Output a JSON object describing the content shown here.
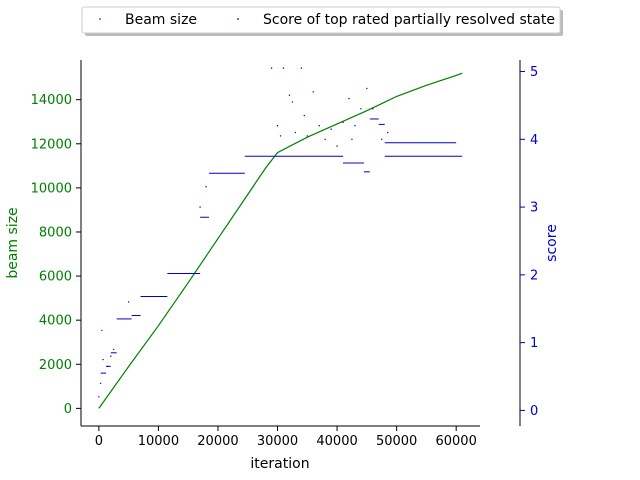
{
  "chart_data": {
    "type": "scatter",
    "xlabel": "iteration",
    "ylabel_left": "beam size",
    "ylabel_right": "score",
    "xlim": [
      -3000,
      64000
    ],
    "ylim_left": [
      -800,
      15800
    ],
    "ylim_right": [
      -0.23,
      5.17
    ],
    "x_ticks": [
      0,
      10000,
      20000,
      30000,
      40000,
      50000,
      60000
    ],
    "y_left_ticks": [
      0,
      2000,
      4000,
      6000,
      8000,
      10000,
      12000,
      14000
    ],
    "y_right_ticks": [
      0,
      1,
      2,
      3,
      4,
      5
    ],
    "legend_position": "top",
    "colors": {
      "beam": "#008000",
      "score": "#0000cc"
    },
    "series": [
      {
        "name": "Beam size",
        "axis": "left",
        "x": [
          0,
          5000,
          10000,
          15000,
          20000,
          25000,
          28000,
          30000,
          35000,
          40000,
          45000,
          50000,
          55000,
          60000,
          61000
        ],
        "values": [
          0,
          1900,
          3750,
          5700,
          7700,
          9700,
          10900,
          11600,
          12300,
          12900,
          13500,
          14150,
          14650,
          15100,
          15200
        ]
      },
      {
        "name": "Score of top rated partially resolved state",
        "axis": "right",
        "segments": [
          {
            "x0": 300,
            "x1": 1200,
            "value": 0.55
          },
          {
            "x0": 1200,
            "x1": 2000,
            "value": 0.65
          },
          {
            "x0": 2000,
            "x1": 3000,
            "value": 0.85
          },
          {
            "x0": 3000,
            "x1": 5500,
            "value": 1.35
          },
          {
            "x0": 5500,
            "x1": 7000,
            "value": 1.4
          },
          {
            "x0": 7000,
            "x1": 11500,
            "value": 1.68
          },
          {
            "x0": 11500,
            "x1": 17000,
            "value": 2.02
          },
          {
            "x0": 17000,
            "x1": 18500,
            "value": 2.85
          },
          {
            "x0": 18500,
            "x1": 24500,
            "value": 3.5
          },
          {
            "x0": 24500,
            "x1": 41000,
            "value": 3.75
          },
          {
            "x0": 41000,
            "x1": 44500,
            "value": 3.65
          },
          {
            "x0": 44500,
            "x1": 45500,
            "value": 3.52
          },
          {
            "x0": 45500,
            "x1": 47000,
            "value": 4.3
          },
          {
            "x0": 47000,
            "x1": 48000,
            "value": 4.22
          },
          {
            "x0": 48000,
            "x1": 60000,
            "value": 3.95
          },
          {
            "x0": 48000,
            "x1": 61000,
            "value": 3.75
          }
        ],
        "scatter": [
          [
            0,
            0.2
          ],
          [
            300,
            0.4
          ],
          [
            500,
            1.18
          ],
          [
            700,
            0.75
          ],
          [
            1500,
            0.65
          ],
          [
            2000,
            0.8
          ],
          [
            2500,
            0.9
          ],
          [
            5000,
            1.6
          ],
          [
            17000,
            3.0
          ],
          [
            18000,
            3.3
          ],
          [
            29000,
            5.05
          ],
          [
            30000,
            4.2
          ],
          [
            30500,
            4.05
          ],
          [
            31000,
            5.05
          ],
          [
            32000,
            4.65
          ],
          [
            32500,
            4.55
          ],
          [
            33000,
            4.1
          ],
          [
            34000,
            5.05
          ],
          [
            34500,
            4.35
          ],
          [
            35000,
            4.05
          ],
          [
            36000,
            4.7
          ],
          [
            37000,
            4.2
          ],
          [
            38000,
            4.0
          ],
          [
            39000,
            4.15
          ],
          [
            40000,
            3.9
          ],
          [
            41000,
            4.25
          ],
          [
            42000,
            4.6
          ],
          [
            42500,
            4.0
          ],
          [
            43000,
            4.2
          ],
          [
            44000,
            4.45
          ],
          [
            45000,
            4.75
          ],
          [
            46000,
            4.45
          ],
          [
            47500,
            4.0
          ],
          [
            48500,
            4.1
          ]
        ],
        "scatter_values_note": ""
      }
    ]
  }
}
